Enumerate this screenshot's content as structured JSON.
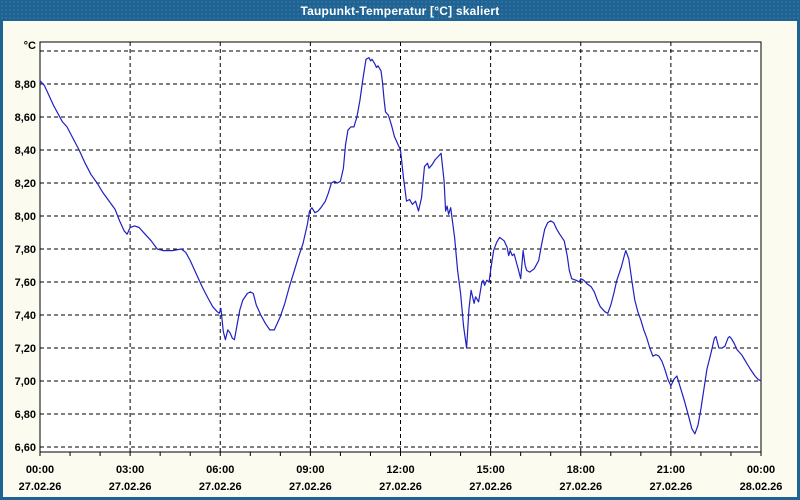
{
  "window": {
    "title": "Taupunkt-Temperatur [°C] skaliert",
    "titlebar_color": "#1e6394",
    "border_color": "#1e6394",
    "background_color": "#fbfbf0"
  },
  "chart_data": {
    "type": "line",
    "title": "Taupunkt-Temperatur [°C] skaliert",
    "ylabel": "°C",
    "grid": "dashed-black",
    "legend_position": "none",
    "plot_background": "#ffffff",
    "frame_color": "#000000",
    "x_axis": {
      "unit": "time-of-day",
      "range_hours": [
        0,
        24
      ],
      "minor_tick_every_hours": 1,
      "major_tick_every_hours": 3,
      "major_ticks": [
        {
          "hour": 0,
          "time": "00:00",
          "date": "27.02.26"
        },
        {
          "hour": 3,
          "time": "03:00",
          "date": "27.02.26"
        },
        {
          "hour": 6,
          "time": "06:00",
          "date": "27.02.26"
        },
        {
          "hour": 9,
          "time": "09:00",
          "date": "27.02.26"
        },
        {
          "hour": 12,
          "time": "12:00",
          "date": "27.02.26"
        },
        {
          "hour": 15,
          "time": "15:00",
          "date": "27.02.26"
        },
        {
          "hour": 18,
          "time": "18:00",
          "date": "27.02.26"
        },
        {
          "hour": 21,
          "time": "21:00",
          "date": "27.02.26"
        },
        {
          "hour": 24,
          "time": "00:00",
          "date": "28.02.26"
        }
      ]
    },
    "y_axis": {
      "label": "°C",
      "min": 6.57,
      "max": 9.05,
      "gridline_step": 0.2,
      "gridlines": [
        {
          "value": 6.6,
          "label": "6,60"
        },
        {
          "value": 6.8,
          "label": "6,80"
        },
        {
          "value": 7.0,
          "label": "7,00"
        },
        {
          "value": 7.2,
          "label": "7,20"
        },
        {
          "value": 7.4,
          "label": "7,40"
        },
        {
          "value": 7.6,
          "label": "7,60"
        },
        {
          "value": 7.8,
          "label": "7,80"
        },
        {
          "value": 8.0,
          "label": "8,00"
        },
        {
          "value": 8.2,
          "label": "8,20"
        },
        {
          "value": 8.4,
          "label": "8,40"
        },
        {
          "value": 8.6,
          "label": "8,60"
        },
        {
          "value": 8.8,
          "label": "8,80"
        },
        {
          "value": 9.0,
          "label": ""
        }
      ]
    },
    "series": [
      {
        "name": "Taupunkt-Temperatur",
        "color": "#2020c0",
        "points": [
          [
            0.0,
            8.82
          ],
          [
            0.15,
            8.79
          ],
          [
            0.3,
            8.73
          ],
          [
            0.45,
            8.67
          ],
          [
            0.6,
            8.62
          ],
          [
            0.75,
            8.57
          ],
          [
            0.9,
            8.54
          ],
          [
            1.1,
            8.47
          ],
          [
            1.3,
            8.4
          ],
          [
            1.5,
            8.32
          ],
          [
            1.7,
            8.25
          ],
          [
            1.9,
            8.2
          ],
          [
            2.1,
            8.14
          ],
          [
            2.3,
            8.09
          ],
          [
            2.5,
            8.04
          ],
          [
            2.65,
            7.97
          ],
          [
            2.8,
            7.91
          ],
          [
            2.9,
            7.89
          ],
          [
            3.0,
            7.93
          ],
          [
            3.15,
            7.94
          ],
          [
            3.3,
            7.93
          ],
          [
            3.5,
            7.89
          ],
          [
            3.7,
            7.85
          ],
          [
            3.9,
            7.8
          ],
          [
            4.1,
            7.79
          ],
          [
            4.4,
            7.79
          ],
          [
            4.7,
            7.8
          ],
          [
            4.85,
            7.78
          ],
          [
            5.0,
            7.73
          ],
          [
            5.2,
            7.65
          ],
          [
            5.4,
            7.57
          ],
          [
            5.6,
            7.5
          ],
          [
            5.75,
            7.45
          ],
          [
            5.9,
            7.42
          ],
          [
            5.97,
            7.41
          ],
          [
            6.02,
            7.44
          ],
          [
            6.1,
            7.3
          ],
          [
            6.17,
            7.25
          ],
          [
            6.25,
            7.31
          ],
          [
            6.33,
            7.29
          ],
          [
            6.4,
            7.26
          ],
          [
            6.47,
            7.25
          ],
          [
            6.55,
            7.33
          ],
          [
            6.65,
            7.43
          ],
          [
            6.75,
            7.49
          ],
          [
            6.9,
            7.53
          ],
          [
            7.0,
            7.54
          ],
          [
            7.1,
            7.53
          ],
          [
            7.2,
            7.46
          ],
          [
            7.35,
            7.4
          ],
          [
            7.5,
            7.35
          ],
          [
            7.65,
            7.31
          ],
          [
            7.8,
            7.31
          ],
          [
            7.9,
            7.35
          ],
          [
            8.0,
            7.39
          ],
          [
            8.15,
            7.47
          ],
          [
            8.3,
            7.57
          ],
          [
            8.45,
            7.66
          ],
          [
            8.6,
            7.75
          ],
          [
            8.75,
            7.83
          ],
          [
            8.9,
            7.95
          ],
          [
            8.97,
            8.03
          ],
          [
            9.05,
            8.05
          ],
          [
            9.15,
            8.02
          ],
          [
            9.25,
            8.03
          ],
          [
            9.35,
            8.05
          ],
          [
            9.5,
            8.09
          ],
          [
            9.6,
            8.14
          ],
          [
            9.7,
            8.2
          ],
          [
            9.8,
            8.21
          ],
          [
            9.9,
            8.2
          ],
          [
            10.0,
            8.21
          ],
          [
            10.1,
            8.29
          ],
          [
            10.17,
            8.43
          ],
          [
            10.25,
            8.52
          ],
          [
            10.35,
            8.54
          ],
          [
            10.45,
            8.54
          ],
          [
            10.55,
            8.6
          ],
          [
            10.65,
            8.7
          ],
          [
            10.75,
            8.83
          ],
          [
            10.85,
            8.95
          ],
          [
            10.95,
            8.96
          ],
          [
            11.0,
            8.94
          ],
          [
            11.05,
            8.95
          ],
          [
            11.15,
            8.92
          ],
          [
            11.2,
            8.9
          ],
          [
            11.25,
            8.91
          ],
          [
            11.35,
            8.88
          ],
          [
            11.4,
            8.81
          ],
          [
            11.45,
            8.71
          ],
          [
            11.5,
            8.63
          ],
          [
            11.6,
            8.61
          ],
          [
            11.7,
            8.55
          ],
          [
            11.8,
            8.48
          ],
          [
            11.9,
            8.44
          ],
          [
            12.0,
            8.4
          ],
          [
            12.1,
            8.23
          ],
          [
            12.2,
            8.09
          ],
          [
            12.3,
            8.1
          ],
          [
            12.4,
            8.07
          ],
          [
            12.5,
            8.09
          ],
          [
            12.6,
            8.03
          ],
          [
            12.7,
            8.11
          ],
          [
            12.8,
            8.3
          ],
          [
            12.9,
            8.32
          ],
          [
            12.95,
            8.29
          ],
          [
            13.05,
            8.31
          ],
          [
            13.15,
            8.34
          ],
          [
            13.25,
            8.36
          ],
          [
            13.35,
            8.38
          ],
          [
            13.45,
            8.21
          ],
          [
            13.5,
            8.03
          ],
          [
            13.55,
            8.06
          ],
          [
            13.6,
            8.01
          ],
          [
            13.67,
            8.05
          ],
          [
            13.72,
            7.98
          ],
          [
            13.8,
            7.87
          ],
          [
            13.9,
            7.67
          ],
          [
            14.0,
            7.53
          ],
          [
            14.1,
            7.33
          ],
          [
            14.2,
            7.2
          ],
          [
            14.28,
            7.44
          ],
          [
            14.35,
            7.55
          ],
          [
            14.45,
            7.47
          ],
          [
            14.5,
            7.51
          ],
          [
            14.6,
            7.48
          ],
          [
            14.7,
            7.59
          ],
          [
            14.75,
            7.61
          ],
          [
            14.8,
            7.58
          ],
          [
            14.87,
            7.61
          ],
          [
            14.95,
            7.6
          ],
          [
            15.0,
            7.67
          ],
          [
            15.1,
            7.79
          ],
          [
            15.2,
            7.84
          ],
          [
            15.3,
            7.87
          ],
          [
            15.45,
            7.85
          ],
          [
            15.55,
            7.81
          ],
          [
            15.6,
            7.76
          ],
          [
            15.65,
            7.79
          ],
          [
            15.72,
            7.76
          ],
          [
            15.78,
            7.77
          ],
          [
            15.9,
            7.69
          ],
          [
            16.0,
            7.62
          ],
          [
            16.08,
            7.79
          ],
          [
            16.15,
            7.7
          ],
          [
            16.2,
            7.67
          ],
          [
            16.3,
            7.66
          ],
          [
            16.45,
            7.68
          ],
          [
            16.6,
            7.73
          ],
          [
            16.7,
            7.83
          ],
          [
            16.8,
            7.92
          ],
          [
            16.9,
            7.96
          ],
          [
            17.0,
            7.97
          ],
          [
            17.1,
            7.96
          ],
          [
            17.2,
            7.92
          ],
          [
            17.3,
            7.89
          ],
          [
            17.45,
            7.85
          ],
          [
            17.55,
            7.76
          ],
          [
            17.62,
            7.67
          ],
          [
            17.7,
            7.62
          ],
          [
            17.85,
            7.61
          ],
          [
            17.95,
            7.6
          ],
          [
            18.0,
            7.62
          ],
          [
            18.1,
            7.61
          ],
          [
            18.2,
            7.59
          ],
          [
            18.35,
            7.57
          ],
          [
            18.45,
            7.54
          ],
          [
            18.55,
            7.49
          ],
          [
            18.65,
            7.45
          ],
          [
            18.8,
            7.42
          ],
          [
            18.9,
            7.41
          ],
          [
            19.0,
            7.46
          ],
          [
            19.1,
            7.53
          ],
          [
            19.2,
            7.61
          ],
          [
            19.35,
            7.69
          ],
          [
            19.45,
            7.76
          ],
          [
            19.5,
            7.79
          ],
          [
            19.6,
            7.74
          ],
          [
            19.7,
            7.61
          ],
          [
            19.8,
            7.49
          ],
          [
            19.9,
            7.42
          ],
          [
            20.0,
            7.37
          ],
          [
            20.1,
            7.31
          ],
          [
            20.2,
            7.26
          ],
          [
            20.3,
            7.2
          ],
          [
            20.4,
            7.15
          ],
          [
            20.5,
            7.16
          ],
          [
            20.6,
            7.15
          ],
          [
            20.7,
            7.12
          ],
          [
            20.8,
            7.07
          ],
          [
            20.9,
            7.01
          ],
          [
            21.0,
            6.97
          ],
          [
            21.1,
            7.01
          ],
          [
            21.2,
            7.03
          ],
          [
            21.3,
            6.97
          ],
          [
            21.45,
            6.88
          ],
          [
            21.6,
            6.78
          ],
          [
            21.7,
            6.71
          ],
          [
            21.8,
            6.68
          ],
          [
            21.9,
            6.73
          ],
          [
            22.0,
            6.83
          ],
          [
            22.1,
            6.95
          ],
          [
            22.2,
            7.07
          ],
          [
            22.35,
            7.18
          ],
          [
            22.45,
            7.26
          ],
          [
            22.5,
            7.27
          ],
          [
            22.6,
            7.2
          ],
          [
            22.7,
            7.2
          ],
          [
            22.8,
            7.21
          ],
          [
            22.9,
            7.26
          ],
          [
            22.95,
            7.27
          ],
          [
            23.0,
            7.26
          ],
          [
            23.1,
            7.23
          ],
          [
            23.2,
            7.19
          ],
          [
            23.35,
            7.16
          ],
          [
            23.45,
            7.13
          ],
          [
            23.55,
            7.1
          ],
          [
            23.65,
            7.07
          ],
          [
            23.8,
            7.03
          ],
          [
            23.9,
            7.01
          ],
          [
            24.0,
            7.0
          ]
        ]
      }
    ]
  }
}
